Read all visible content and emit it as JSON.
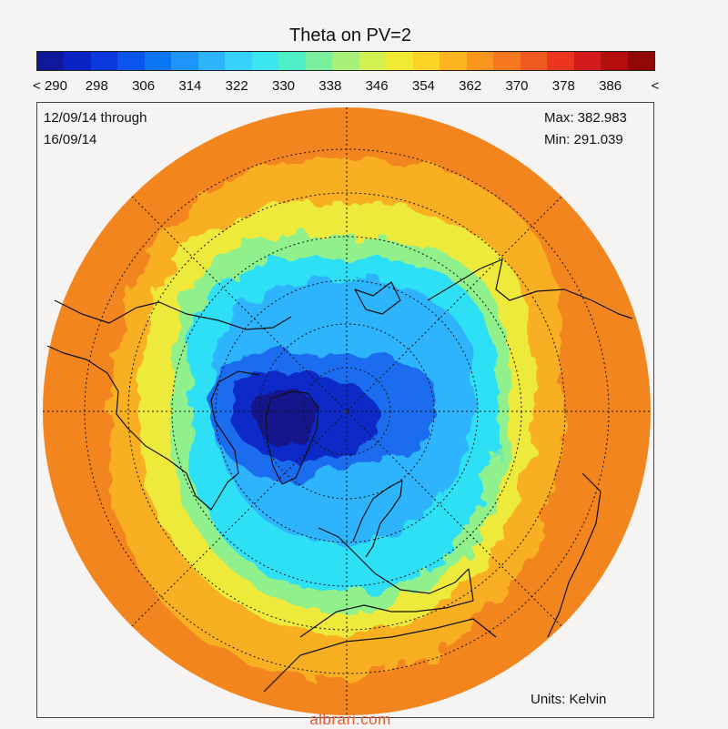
{
  "title": "Theta on PV=2",
  "colorbar": {
    "colors": [
      "#10189c",
      "#0a24c4",
      "#0a38dc",
      "#0a55ec",
      "#0a75f4",
      "#1e95fa",
      "#2eb4fc",
      "#37d2fc",
      "#3ce6f0",
      "#4ff0c8",
      "#7af09c",
      "#a8f078",
      "#d2f050",
      "#f2ea32",
      "#fcd224",
      "#fcb420",
      "#fa961e",
      "#f7781e",
      "#f05a1e",
      "#ec3420",
      "#d21a1a",
      "#b40e0e",
      "#920808"
    ],
    "tick_labels": [
      "< 290",
      "298",
      "306",
      "314",
      "322",
      "330",
      "338",
      "346",
      "354",
      "362",
      "370",
      "378",
      "386",
      "<"
    ]
  },
  "period": {
    "line1": "12/09/14 through",
    "line2": "16/09/14"
  },
  "stats": {
    "max": "Max: 382.983",
    "min": "Min: 291.039"
  },
  "units": "Units: Kelvin",
  "watermark": "albrari.com",
  "map": {
    "projection": "polar-stereographic-north",
    "field_colors": {
      "outer": "#f3851f",
      "warm": "#f8b024",
      "yellow": "#eeea3a",
      "green": "#8ff08c",
      "cyan": "#2fe0f6",
      "sky": "#2eb4fc",
      "blue": "#1e6cf0",
      "deep": "#0a2cc8",
      "core": "#12188c"
    },
    "coast_color": "#111111",
    "grid_color": "#111111"
  }
}
